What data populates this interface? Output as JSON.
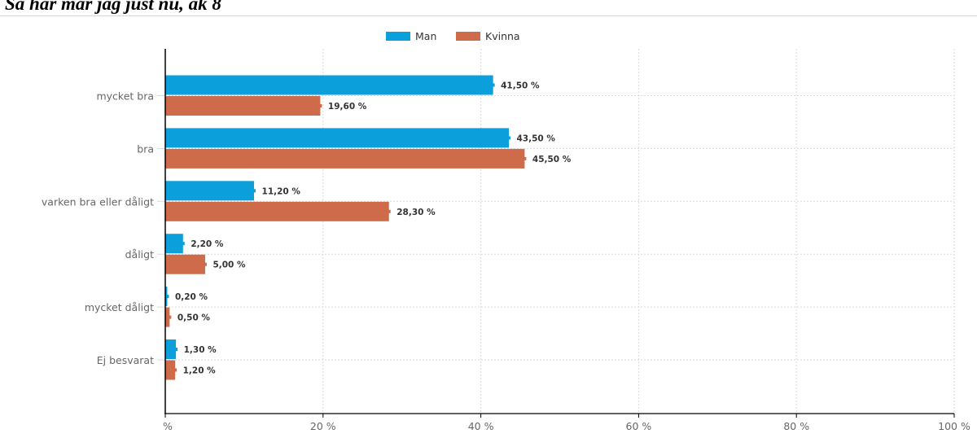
{
  "page": {
    "title": "Så här mår jag just nu, åk 8"
  },
  "colors": {
    "man": "#0ba0dc",
    "kvinna": "#cd6b4b",
    "grid": "#d9d9d9",
    "axis": "#000000",
    "tick_text": "#666666",
    "label_text": "#333333"
  },
  "chart_data": {
    "type": "bar",
    "orientation": "horizontal",
    "title": "",
    "xlabel": "",
    "ylabel": "",
    "xlim": [
      0,
      100
    ],
    "x_ticks": [
      0,
      20,
      40,
      60,
      80,
      100
    ],
    "x_tick_labels": [
      "%",
      "20 %",
      "40 %",
      "60 %",
      "80 %",
      "100 %"
    ],
    "grid": true,
    "legend_position": "top-center",
    "categories": [
      "mycket bra",
      "bra",
      "varken bra eller dåligt",
      "dåligt",
      "mycket dåligt",
      "Ej besvarat"
    ],
    "series": [
      {
        "name": "Man",
        "color": "#0ba0dc",
        "values": [
          41.5,
          43.5,
          11.2,
          2.2,
          0.2,
          1.3
        ],
        "labels": [
          "41,50 %",
          "43,50 %",
          "11,20 %",
          "2,20 %",
          "0,20 %",
          "1,30 %"
        ]
      },
      {
        "name": "Kvinna",
        "color": "#cd6b4b",
        "values": [
          19.6,
          45.5,
          28.3,
          5.0,
          0.5,
          1.2
        ],
        "labels": [
          "19,60 %",
          "45,50 %",
          "28,30 %",
          "5,00 %",
          "0,50 %",
          "1,20 %"
        ]
      }
    ]
  }
}
